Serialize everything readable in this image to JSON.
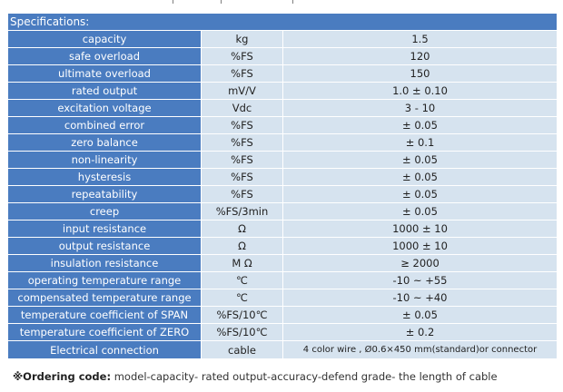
{
  "table": {
    "header": "Specifications:",
    "rows": [
      {
        "name": "capacity",
        "unit": "kg",
        "value": "1.5"
      },
      {
        "name": "safe overload",
        "unit": "%FS",
        "value": "120"
      },
      {
        "name": "ultimate overload",
        "unit": "%FS",
        "value": "150"
      },
      {
        "name": "rated output",
        "unit": "mV/V",
        "value": "1.0 ± 0.10"
      },
      {
        "name": "excitation voltage",
        "unit": "Vdc",
        "value": "3 - 10"
      },
      {
        "name": "combined error",
        "unit": "%FS",
        "value": "± 0.05"
      },
      {
        "name": "zero balance",
        "unit": "%FS",
        "value": "± 0.1"
      },
      {
        "name": "non-linearity",
        "unit": "%FS",
        "value": "± 0.05"
      },
      {
        "name": "hysteresis",
        "unit": "%FS",
        "value": "± 0.05"
      },
      {
        "name": "repeatability",
        "unit": "%FS",
        "value": "± 0.05"
      },
      {
        "name": "creep",
        "unit": "%FS/3min",
        "value": "± 0.05"
      },
      {
        "name": "input resistance",
        "unit": "Ω",
        "value": "1000 ± 10"
      },
      {
        "name": "output resistance",
        "unit": "Ω",
        "value": "1000 ± 10"
      },
      {
        "name": "insulation resistance",
        "unit": "M Ω",
        "value": "≥ 2000"
      },
      {
        "name": "operating temperature range",
        "unit": "℃",
        "value": "-10 ~ +55"
      },
      {
        "name": "compensated temperature range",
        "unit": "℃",
        "value": "-10 ~ +40"
      },
      {
        "name": "temperature coefficient of SPAN",
        "unit": "%FS/10℃",
        "value": "± 0.05"
      },
      {
        "name": "temperature coefficient of ZERO",
        "unit": "%FS/10℃",
        "value": "± 0.2"
      },
      {
        "name": "Electrical connection",
        "unit": "cable",
        "value": "4 color wire , Ø0.6×450 mm(standard)or connector"
      }
    ]
  },
  "ordering": {
    "label": "※Ordering code:",
    "text": " model-capacity- rated output-accuracy-defend grade- the length of cable"
  },
  "colors": {
    "header_bg": "#4a7cc0",
    "cell_bg": "#d6e3ef"
  }
}
